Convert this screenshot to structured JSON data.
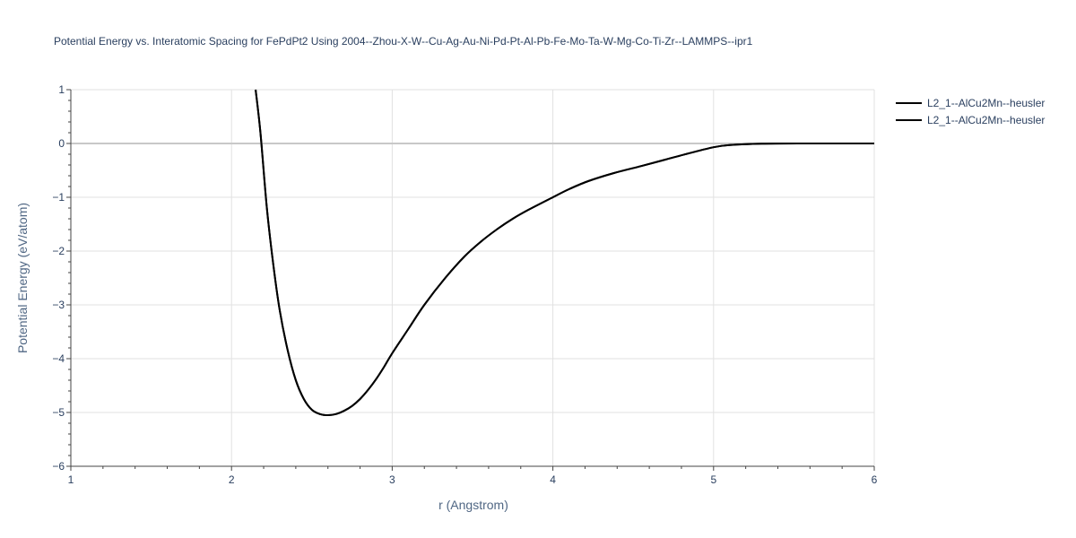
{
  "chart_data": {
    "type": "line",
    "title": "Potential Energy vs. Interatomic Spacing for FePdPt2 Using 2004--Zhou-X-W--Cu-Ag-Au-Ni-Pd-Pt-Al-Pb-Fe-Mo-Ta-W-Mg-Co-Ti-Zr--LAMMPS--ipr1",
    "xlabel": "r (Angstrom)",
    "ylabel": "Potential Energy (eV/atom)",
    "xlim": [
      1,
      6
    ],
    "ylim": [
      -6,
      1
    ],
    "x_ticks": [
      1,
      2,
      3,
      4,
      5,
      6
    ],
    "y_ticks": [
      1,
      0,
      -1,
      -2,
      -3,
      -4,
      -5,
      -6
    ],
    "x_tick_labels": [
      "1",
      "2",
      "3",
      "4",
      "5",
      "6"
    ],
    "y_tick_labels": [
      "1",
      "0",
      "−1",
      "−2",
      "−3",
      "−4",
      "−5",
      "−6"
    ],
    "grid": true,
    "legend_position": "top-right",
    "series": [
      {
        "name": "L2_1--AlCu2Mn--heusler",
        "color": "#000000",
        "x": [
          2.15,
          2.18,
          2.22,
          2.26,
          2.3,
          2.35,
          2.4,
          2.45,
          2.5,
          2.55,
          2.6,
          2.65,
          2.7,
          2.75,
          2.8,
          2.85,
          2.9,
          2.95,
          3.0,
          3.1,
          3.2,
          3.33,
          3.45,
          3.55,
          3.65,
          3.75,
          3.85,
          4.0,
          4.1,
          4.22,
          4.38,
          4.55,
          4.7,
          4.85,
          5.0,
          5.1,
          5.3,
          5.6,
          6.0
        ],
        "y": [
          1.0,
          0.2,
          -1.2,
          -2.25,
          -3.1,
          -3.85,
          -4.4,
          -4.75,
          -4.95,
          -5.03,
          -5.05,
          -5.03,
          -4.97,
          -4.88,
          -4.75,
          -4.58,
          -4.38,
          -4.15,
          -3.9,
          -3.45,
          -3.0,
          -2.5,
          -2.1,
          -1.83,
          -1.6,
          -1.4,
          -1.23,
          -1.0,
          -0.85,
          -0.7,
          -0.55,
          -0.42,
          -0.3,
          -0.18,
          -0.07,
          -0.03,
          -0.005,
          0.0,
          0.0
        ]
      },
      {
        "name": "L2_1--AlCu2Mn--heusler",
        "color": "#000000",
        "x": [
          2.15,
          2.18,
          2.22,
          2.26,
          2.3,
          2.35,
          2.4,
          2.45,
          2.5,
          2.55,
          2.6,
          2.65,
          2.7,
          2.75,
          2.8,
          2.85,
          2.9,
          2.95,
          3.0,
          3.1,
          3.2,
          3.33,
          3.45,
          3.55,
          3.65,
          3.75,
          3.85,
          4.0,
          4.1,
          4.22,
          4.38,
          4.55,
          4.7,
          4.85,
          5.0,
          5.1,
          5.3,
          5.6,
          6.0
        ],
        "y": [
          1.0,
          0.2,
          -1.2,
          -2.25,
          -3.1,
          -3.85,
          -4.4,
          -4.75,
          -4.95,
          -5.03,
          -5.05,
          -5.03,
          -4.97,
          -4.88,
          -4.75,
          -4.58,
          -4.38,
          -4.15,
          -3.9,
          -3.45,
          -3.0,
          -2.5,
          -2.1,
          -1.83,
          -1.6,
          -1.4,
          -1.23,
          -1.0,
          -0.85,
          -0.7,
          -0.55,
          -0.42,
          -0.3,
          -0.18,
          -0.07,
          -0.03,
          -0.005,
          0.0,
          0.0
        ]
      }
    ]
  }
}
